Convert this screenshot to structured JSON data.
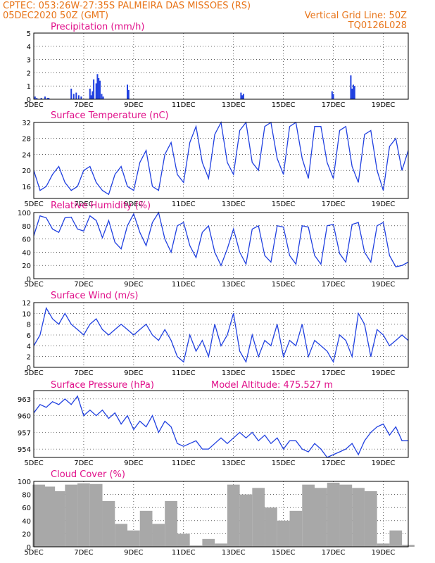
{
  "header": {
    "line1": "CPTEC:   053:26W-27:35S   PALMEIRA DAS MISSOES (RS)",
    "line2_left": "05DEC2020 50Z (GMT)",
    "line2_right": "Vertical Grid Line: 50Z",
    "line3_right": "TQ0126L028"
  },
  "x_axis": {
    "labels": [
      "5DEC",
      "7DEC",
      "9DEC",
      "11DEC",
      "13DEC",
      "15DEC",
      "17DEC",
      "19DEC"
    ],
    "label_days": [
      0,
      2,
      4,
      6,
      8,
      10,
      12,
      14
    ],
    "range_days": [
      0,
      15
    ]
  },
  "colors": {
    "line": "#2040e0",
    "bar": "#2040e0",
    "cloud": "#a8a8a8",
    "title": "#e0108a",
    "header": "#e8751a"
  },
  "chart_data": [
    {
      "id": "precip",
      "type": "bar",
      "title": "Precipitation (mm/h)",
      "ylim": [
        0,
        5
      ],
      "yticks": [
        0,
        1,
        2,
        3,
        4,
        5
      ],
      "x_days": [
        0.05,
        0.12,
        0.3,
        0.45,
        0.55,
        0.6,
        1.5,
        1.6,
        1.7,
        1.8,
        1.9,
        2.25,
        2.3,
        2.35,
        2.4,
        2.5,
        2.55,
        2.6,
        2.65,
        2.72,
        2.78,
        3.75,
        3.8,
        8.3,
        8.35,
        8.4,
        11.95,
        12.0,
        12.7,
        12.75,
        12.8,
        12.85
      ],
      "values": [
        0.2,
        0.1,
        0.1,
        0.2,
        0.1,
        0.1,
        0.8,
        0.4,
        0.5,
        0.3,
        0.2,
        0.8,
        0.3,
        0.6,
        1.5,
        1.2,
        1.9,
        1.6,
        1.4,
        0.4,
        0.2,
        1.1,
        0.7,
        0.5,
        0.3,
        0.4,
        0.6,
        0.4,
        1.8,
        0.8,
        1.1,
        1.0
      ]
    },
    {
      "id": "temp",
      "type": "line",
      "title": "Surface Temperature (nC)",
      "ylim": [
        13,
        32
      ],
      "yticks": [
        16,
        20,
        24,
        28,
        32
      ],
      "x_days": [
        0,
        0.25,
        0.5,
        0.75,
        1.0,
        1.25,
        1.5,
        1.75,
        2.0,
        2.25,
        2.5,
        2.75,
        3.0,
        3.25,
        3.5,
        3.75,
        4.0,
        4.25,
        4.5,
        4.75,
        5.0,
        5.25,
        5.5,
        5.75,
        6.0,
        6.25,
        6.5,
        6.75,
        7.0,
        7.25,
        7.5,
        7.75,
        8.0,
        8.25,
        8.5,
        8.75,
        9.0,
        9.25,
        9.5,
        9.75,
        10.0,
        10.25,
        10.5,
        10.75,
        11.0,
        11.25,
        11.5,
        11.75,
        12.0,
        12.25,
        12.5,
        12.75,
        13.0,
        13.25,
        13.5,
        13.75,
        14.0,
        14.25,
        14.5,
        14.75,
        15.0
      ],
      "values": [
        20,
        15,
        16,
        19,
        21,
        17,
        15,
        16,
        20,
        21,
        17,
        15,
        14,
        19,
        21,
        16,
        15,
        22,
        25,
        16,
        15,
        24,
        27,
        19,
        17,
        27,
        31,
        22,
        18,
        29,
        32,
        22,
        19,
        30,
        32,
        22,
        20,
        31,
        32,
        23,
        19,
        31,
        32,
        23,
        18,
        31,
        31,
        22,
        18,
        30,
        31,
        21,
        17,
        29,
        30,
        20,
        15,
        26,
        28,
        20,
        25
      ],
      "grid": true
    },
    {
      "id": "rh",
      "type": "line",
      "title": "Relative Humidity (%)",
      "ylim": [
        0,
        100
      ],
      "yticks": [
        0,
        20,
        40,
        60,
        80,
        100
      ],
      "x_days": [
        0,
        0.25,
        0.5,
        0.75,
        1.0,
        1.25,
        1.5,
        1.75,
        2.0,
        2.25,
        2.5,
        2.75,
        3.0,
        3.25,
        3.5,
        3.75,
        4.0,
        4.25,
        4.5,
        4.75,
        5.0,
        5.25,
        5.5,
        5.75,
        6.0,
        6.25,
        6.5,
        6.75,
        7.0,
        7.25,
        7.5,
        7.75,
        8.0,
        8.25,
        8.5,
        8.75,
        9.0,
        9.25,
        9.5,
        9.75,
        10.0,
        10.25,
        10.5,
        10.75,
        11.0,
        11.25,
        11.5,
        11.75,
        12.0,
        12.25,
        12.5,
        12.75,
        13.0,
        13.25,
        13.5,
        13.75,
        14.0,
        14.25,
        14.5,
        14.75,
        15.0
      ],
      "values": [
        65,
        95,
        92,
        75,
        70,
        92,
        93,
        75,
        72,
        95,
        88,
        62,
        88,
        55,
        45,
        80,
        98,
        70,
        50,
        85,
        100,
        60,
        40,
        80,
        85,
        50,
        32,
        70,
        80,
        40,
        20,
        45,
        75,
        40,
        22,
        75,
        80,
        35,
        25,
        80,
        78,
        35,
        22,
        80,
        78,
        35,
        22,
        80,
        82,
        38,
        25,
        82,
        85,
        40,
        25,
        80,
        85,
        35,
        18,
        20,
        25
      ],
      "grid": true
    },
    {
      "id": "wind",
      "type": "line",
      "title": "Surface Wind (m/s)",
      "ylim": [
        0,
        12
      ],
      "yticks": [
        0,
        2,
        4,
        6,
        8,
        10,
        12
      ],
      "x_days": [
        0,
        0.25,
        0.5,
        0.75,
        1.0,
        1.25,
        1.5,
        1.75,
        2.0,
        2.25,
        2.5,
        2.75,
        3.0,
        3.25,
        3.5,
        3.75,
        4.0,
        4.25,
        4.5,
        4.75,
        5.0,
        5.25,
        5.5,
        5.75,
        6.0,
        6.25,
        6.5,
        6.75,
        7.0,
        7.25,
        7.5,
        7.75,
        8.0,
        8.25,
        8.5,
        8.75,
        9.0,
        9.25,
        9.5,
        9.75,
        10.0,
        10.25,
        10.5,
        10.75,
        11.0,
        11.25,
        11.5,
        11.75,
        12.0,
        12.25,
        12.5,
        12.75,
        13.0,
        13.25,
        13.5,
        13.75,
        14.0,
        14.25,
        14.5,
        14.75,
        15.0
      ],
      "values": [
        4,
        6,
        11,
        9,
        8,
        10,
        8,
        7,
        6,
        8,
        9,
        7,
        6,
        7,
        8,
        7,
        6,
        7,
        8,
        6,
        5,
        7,
        5,
        2,
        1,
        6,
        3,
        5,
        2,
        8,
        4,
        6,
        10,
        3,
        1,
        6,
        2,
        5,
        4,
        8,
        2,
        5,
        4,
        8,
        2,
        5,
        4,
        3,
        1,
        6,
        5,
        2,
        10,
        8,
        2,
        7,
        6,
        4,
        5,
        6,
        5
      ],
      "grid": true
    },
    {
      "id": "pressure",
      "type": "line",
      "title": "Surface Pressure (hPa)",
      "annotation": "Model Altitude: 475.527 m",
      "ylim": [
        952.5,
        964.5
      ],
      "yticks": [
        954,
        957,
        960,
        963
      ],
      "x_days": [
        0,
        0.25,
        0.5,
        0.75,
        1.0,
        1.25,
        1.5,
        1.75,
        2.0,
        2.25,
        2.5,
        2.75,
        3.0,
        3.25,
        3.5,
        3.75,
        4.0,
        4.25,
        4.5,
        4.75,
        5.0,
        5.25,
        5.5,
        5.75,
        6.0,
        6.25,
        6.5,
        6.75,
        7.0,
        7.25,
        7.5,
        7.75,
        8.0,
        8.25,
        8.5,
        8.75,
        9.0,
        9.25,
        9.5,
        9.75,
        10.0,
        10.25,
        10.5,
        10.75,
        11.0,
        11.25,
        11.5,
        11.75,
        12.0,
        12.25,
        12.5,
        12.75,
        13.0,
        13.25,
        13.5,
        13.75,
        14.0,
        14.25,
        14.5,
        14.75,
        15.0
      ],
      "values": [
        960.5,
        962,
        961.5,
        962.5,
        962,
        963,
        962,
        963.5,
        960,
        961,
        960,
        961,
        959.5,
        960.5,
        958.5,
        960,
        957.5,
        959,
        958,
        960,
        957,
        959,
        958,
        955,
        954.5,
        955,
        955.5,
        954,
        954,
        955,
        956,
        955,
        956,
        957,
        956,
        957,
        955.5,
        956.5,
        955,
        956,
        954,
        955.5,
        955.5,
        954,
        953.5,
        955,
        954,
        952.5,
        953,
        953.5,
        954,
        955,
        953,
        955.5,
        957,
        958,
        958.5,
        956.5,
        958,
        955.5,
        955.5
      ]
    },
    {
      "id": "cloud",
      "type": "bar",
      "title": "Cloud Cover (%)",
      "ylim": [
        0,
        100
      ],
      "yticks": [
        0,
        20,
        40,
        60,
        80,
        100
      ],
      "x_days": [
        0.2,
        0.6,
        1.0,
        1.5,
        2.0,
        2.5,
        3.0,
        3.5,
        4.0,
        4.5,
        5.0,
        5.5,
        6.0,
        6.5,
        7.0,
        7.5,
        8.0,
        8.5,
        9.0,
        9.5,
        10.0,
        10.5,
        11.0,
        11.5,
        12.0,
        12.5,
        13.0,
        13.5,
        14.0,
        14.5,
        15.0
      ],
      "values": [
        95,
        92,
        85,
        95,
        97,
        96,
        70,
        35,
        25,
        55,
        35,
        70,
        20,
        2,
        12,
        5,
        95,
        80,
        90,
        60,
        40,
        55,
        95,
        90,
        98,
        95,
        90,
        85,
        5,
        25,
        3
      ],
      "grid": true
    }
  ]
}
